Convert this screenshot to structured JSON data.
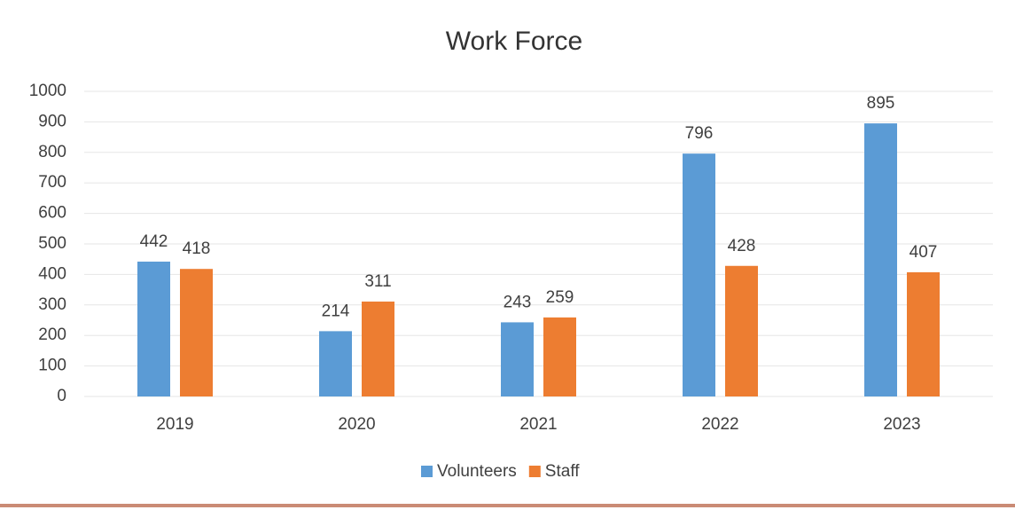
{
  "chart_data": {
    "type": "bar",
    "title": "Work Force",
    "categories": [
      "2019",
      "2020",
      "2021",
      "2022",
      "2023"
    ],
    "series": [
      {
        "name": "Volunteers",
        "color": "#5b9bd5",
        "values": [
          442,
          214,
          243,
          796,
          895
        ]
      },
      {
        "name": "Staff",
        "color": "#ed7d31",
        "values": [
          418,
          311,
          259,
          428,
          407
        ]
      }
    ],
    "ylim": [
      0,
      1000
    ],
    "yticks": [
      0,
      100,
      200,
      300,
      400,
      500,
      600,
      700,
      800,
      900,
      1000
    ],
    "grid": true,
    "legend": "bottom"
  }
}
